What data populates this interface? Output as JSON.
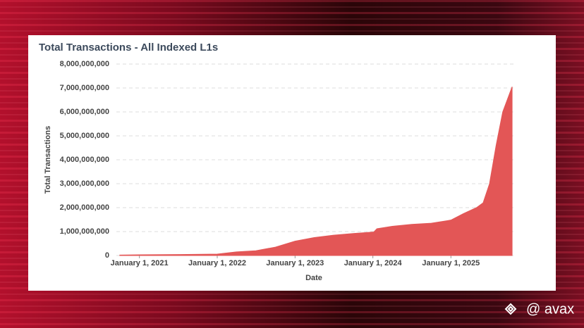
{
  "chart_data": {
    "type": "area",
    "title": "Total Transactions - All Indexed L1s",
    "x_label": "Date",
    "y_label": "Total Transactions",
    "x": [
      "2020-10-01",
      "2021-01-01",
      "2021-07-01",
      "2022-01-01",
      "2022-04-01",
      "2022-07-01",
      "2022-10-01",
      "2023-01-01",
      "2023-04-01",
      "2023-07-01",
      "2023-10-01",
      "2024-01-05",
      "2024-01-20",
      "2024-04-01",
      "2024-07-01",
      "2024-10-01",
      "2025-01-01",
      "2025-03-01",
      "2025-05-01",
      "2025-06-01",
      "2025-07-01",
      "2025-08-01",
      "2025-09-01",
      "2025-10-15"
    ],
    "values": [
      20000000,
      30000000,
      40000000,
      60000000,
      150000000,
      200000000,
      350000000,
      600000000,
      750000000,
      850000000,
      920000000,
      980000000,
      1120000000,
      1220000000,
      1300000000,
      1350000000,
      1480000000,
      1750000000,
      2000000000,
      2200000000,
      3000000000,
      4600000000,
      6000000000,
      7050000000
    ],
    "color": "#e35656",
    "xlim": [
      "2020-09-15",
      "2025-10-28"
    ],
    "xticks": [
      {
        "value": "2021-01-01",
        "label": "January 1, 2021"
      },
      {
        "value": "2022-01-01",
        "label": "January 1, 2022"
      },
      {
        "value": "2023-01-01",
        "label": "January 1, 2023"
      },
      {
        "value": "2024-01-01",
        "label": "January 1, 2024"
      },
      {
        "value": "2025-01-01",
        "label": "January 1, 2025"
      }
    ],
    "ylim": [
      0,
      8000000000
    ],
    "yticks": [
      0,
      {
        "value": 1000000000,
        "label": "1,000,000,000"
      },
      {
        "value": 2000000000,
        "label": "2,000,000,000"
      },
      {
        "value": 3000000000,
        "label": "3,000,000,000"
      },
      {
        "value": 4000000000,
        "label": "4,000,000,000"
      },
      {
        "value": 5000000000,
        "label": "5,000,000,000"
      },
      {
        "value": 6000000000,
        "label": "6,000,000,000"
      },
      {
        "value": 7000000000,
        "label": "7,000,000,000"
      },
      {
        "value": 8000000000,
        "label": "8,000,000,000"
      }
    ],
    "grid": true
  },
  "watermark": "@ avax"
}
